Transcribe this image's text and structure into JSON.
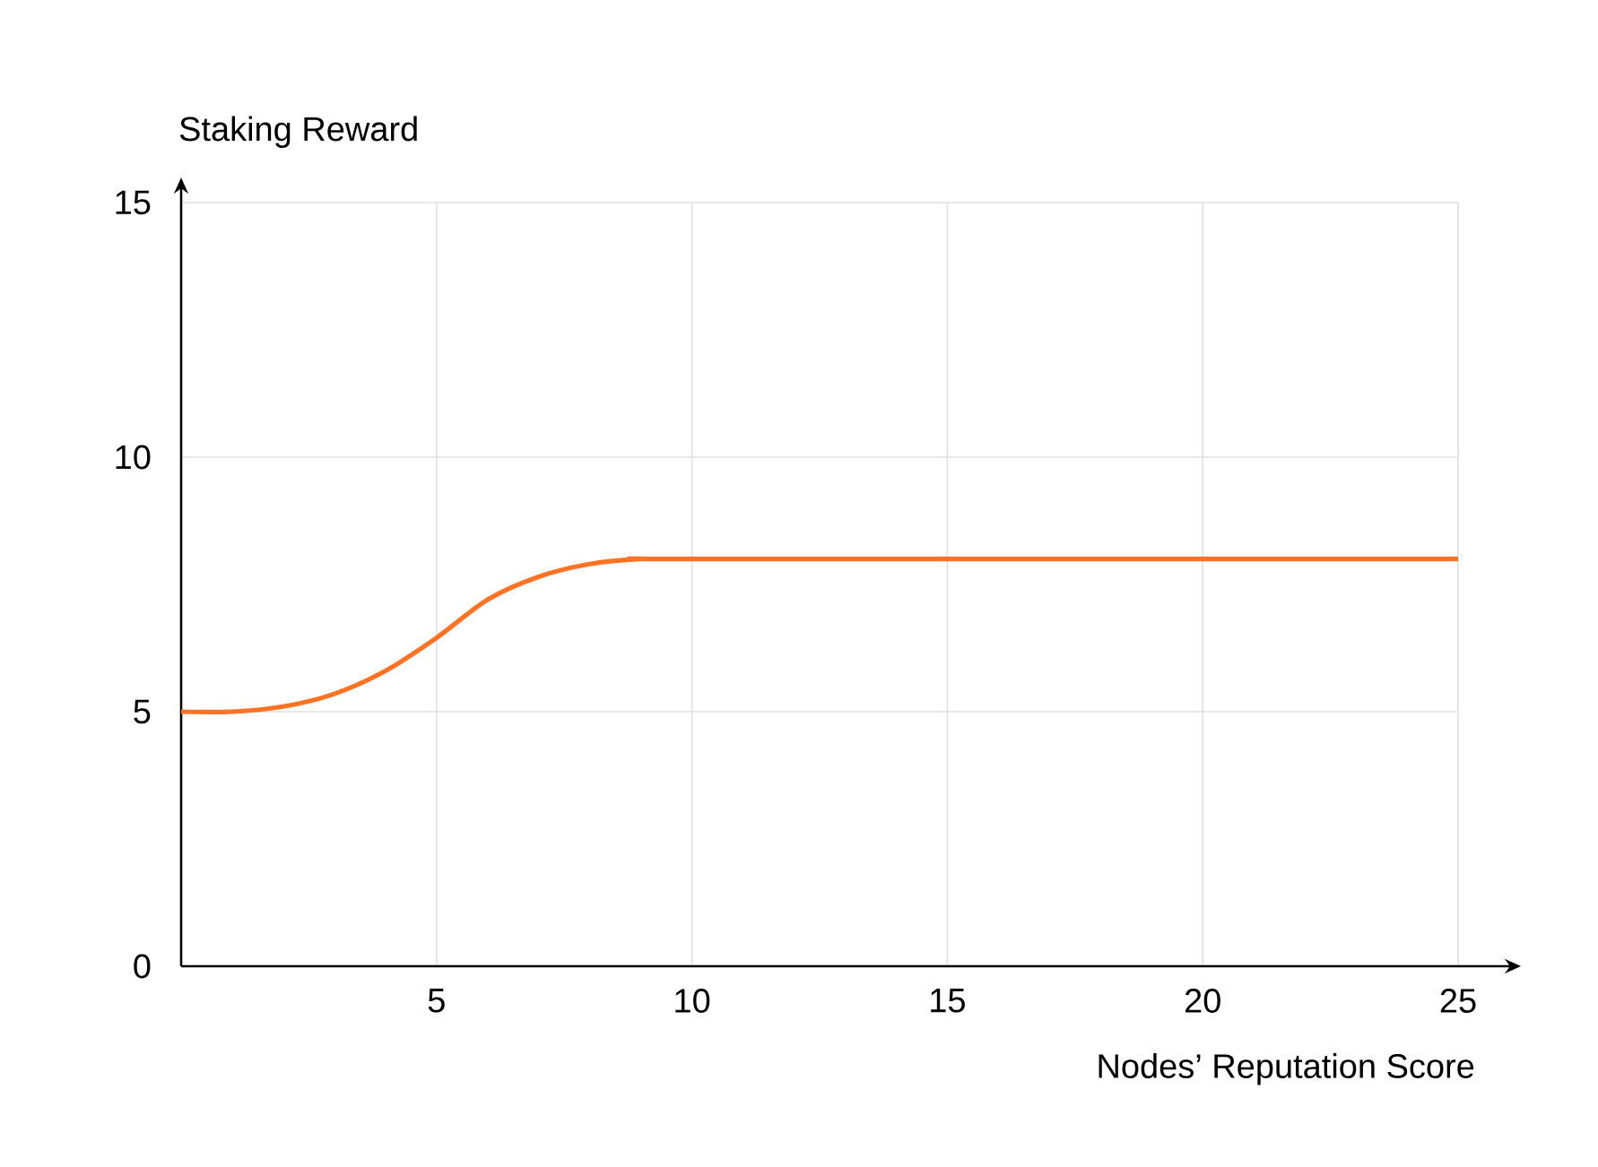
{
  "chart_data": {
    "type": "line",
    "xlabel": "Nodes’ Reputation Score",
    "ylabel": "Staking Reward",
    "x": [
      0,
      1,
      2,
      3,
      4,
      5,
      6,
      7,
      8,
      9,
      10,
      25
    ],
    "series": [
      {
        "color": "#ff7324",
        "values": [
          5,
          5,
          5.1,
          5.35,
          5.8,
          6.45,
          7.2,
          7.65,
          7.9,
          8,
          8,
          8
        ]
      }
    ],
    "xlim": [
      0,
      25
    ],
    "ylim": [
      0,
      15
    ],
    "xticks": [
      5,
      10,
      15,
      20,
      25
    ],
    "yticks": [
      0,
      5,
      10,
      15
    ],
    "grid": true
  }
}
